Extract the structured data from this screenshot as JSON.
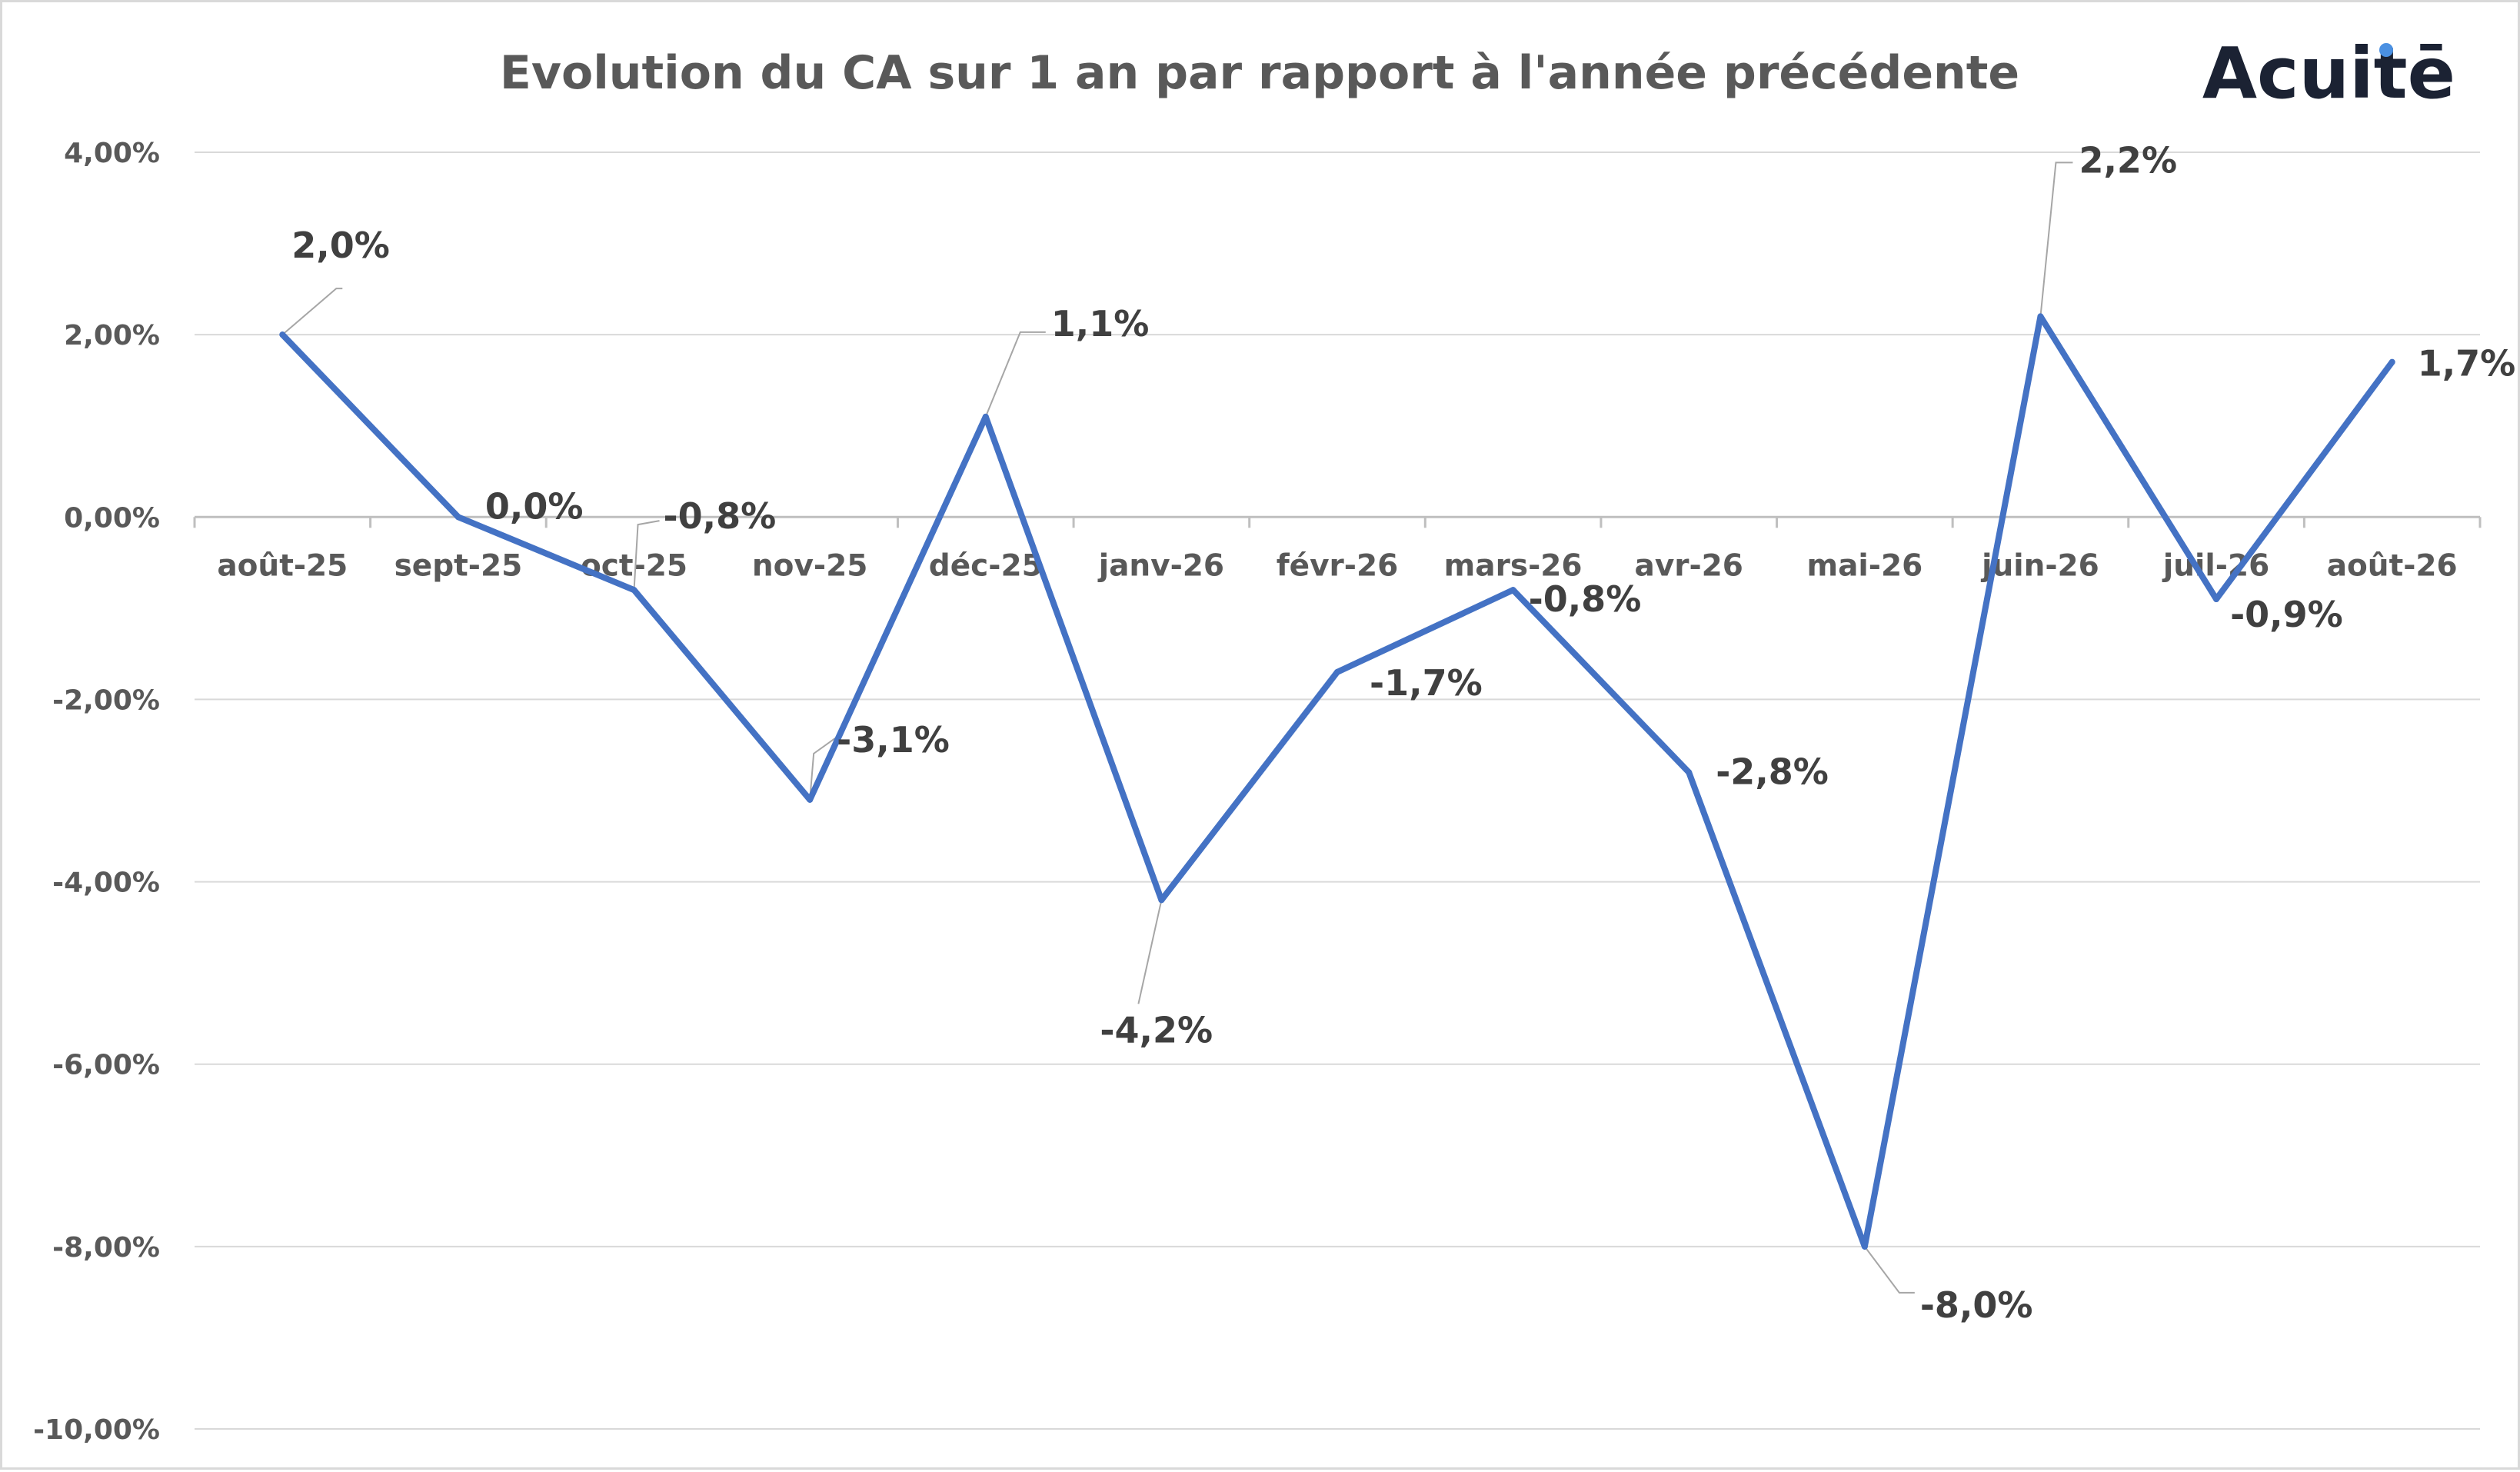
{
  "logo": {
    "text": "Acuitē",
    "dot_color": "#4a90e2"
  },
  "chart_data": {
    "type": "line",
    "title": "Evolution du CA sur 1 an par rapport à l'année précédente",
    "categories": [
      "août-25",
      "sept-25",
      "oct-25",
      "nov-25",
      "déc-25",
      "janv-26",
      "févr-26",
      "mars-26",
      "avr-26",
      "mai-26",
      "juin-26",
      "juil-26",
      "août-26"
    ],
    "series": [
      {
        "values": [
          2.0,
          0.0,
          -0.8,
          -3.1,
          1.1,
          -4.2,
          -1.7,
          -0.8,
          -2.8,
          -8.0,
          2.2,
          -0.9,
          1.7
        ],
        "color": "#4472c4"
      }
    ],
    "data_labels": [
      "2,0%",
      "0,0%",
      "-0,8%",
      "-3,1%",
      "1,1%",
      "-4,2%",
      "-1,7%",
      "-0,8%",
      "-2,8%",
      "-8,0%",
      "2,2%",
      "-0,9%",
      "1,7%"
    ],
    "yticks": [
      4,
      2,
      0,
      -2,
      -4,
      -6,
      -8,
      -10
    ],
    "ytick_labels": [
      "4,00%",
      "2,00%",
      "0,00%",
      "-2,00%",
      "-4,00%",
      "-6,00%",
      "-8,00%",
      "-10,00%"
    ],
    "ylim": [
      -10,
      4
    ],
    "grid": true,
    "legend": "none"
  }
}
